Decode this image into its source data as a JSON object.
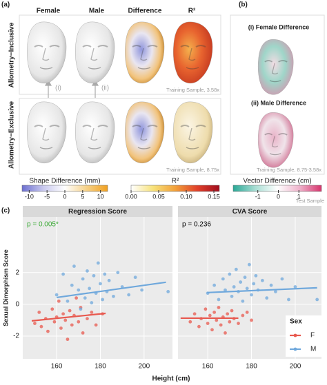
{
  "panel_a": {
    "label": "(a)",
    "columns": [
      "Female",
      "Male",
      "Difference",
      "R²"
    ],
    "rows": [
      "Allometry−Inclusive",
      "Allometry−Exclusive"
    ],
    "arrows": [
      "(i)",
      "(ii)"
    ],
    "notes": [
      "Training Sample, 3.58x",
      "Training Sample, 8.75x"
    ]
  },
  "panel_b": {
    "label": "(b)",
    "titles": [
      "(i) Female Difference",
      "(ii) Male Difference"
    ],
    "note": "Training Sample, 8.75-3.58x"
  },
  "colorbars": [
    {
      "title": "Shape Difference (mm)",
      "lim": [
        -12,
        12
      ],
      "ticks": [
        -10,
        -5,
        0,
        5,
        10
      ],
      "colors": [
        "#6c6fd0",
        "#c9c9ee",
        "#ffffff",
        "#f6d28a",
        "#f0a020"
      ]
    },
    {
      "title": "R²",
      "lim": [
        0,
        0.16
      ],
      "ticks": [
        {
          "value": 0,
          "label": "0.00"
        },
        {
          "value": 0.05,
          "label": "0.05"
        },
        {
          "value": 0.1,
          "label": "0.10"
        },
        0.15
      ],
      "colors": [
        "#ffffff",
        "#f7e27a",
        "#f2a13a",
        "#e0402a",
        "#a00d1e"
      ]
    },
    {
      "title": "Vector Difference (cm)",
      "lim": [
        -2.2,
        2.1
      ],
      "ticks": [
        -1,
        0,
        1
      ],
      "colors": [
        "#2aa896",
        "#a8ddd3",
        "#ffffff",
        "#eeb3cb",
        "#d6336c"
      ]
    }
  ],
  "panel_c": {
    "label": "(c)",
    "note": "Test Sample",
    "xlabel": "Height (cm)",
    "ylabel": "Sexual Dimorphism Score",
    "legend_title": "Sex"
  },
  "chart_data": [
    {
      "type": "scatter",
      "title": "Regression Score",
      "annotation": "p = 0.005*",
      "annotation_color": "#3aaa35",
      "xlim": [
        144.5,
        213
      ],
      "ylim": [
        -3.43,
        5.5
      ],
      "xticks": [
        160,
        180,
        200
      ],
      "yticks": [
        -2,
        0,
        2
      ],
      "grid": true,
      "series": [
        {
          "name": "F",
          "color": "#e8594f",
          "x": [
            150,
            152,
            153,
            155,
            156,
            158,
            159,
            160,
            161,
            162,
            163,
            164,
            165,
            166,
            167,
            168,
            169,
            170,
            171,
            172,
            174,
            176,
            178,
            181
          ],
          "y": [
            -1.2,
            -0.5,
            -1.4,
            -0.9,
            -1.7,
            -0.3,
            -1.1,
            -0.8,
            0.2,
            -1.5,
            -0.6,
            -1.0,
            -2.2,
            -0.4,
            -1.3,
            -0.7,
            0.4,
            -1.1,
            -0.2,
            -1.8,
            -0.9,
            -0.5,
            -1.3,
            -0.6
          ],
          "fit": {
            "x": [
              148.6,
              182.4
            ],
            "y": [
              -1.04,
              -0.57
            ]
          }
        },
        {
          "name": "M",
          "color": "#6fa8dc",
          "x": [
            160,
            163,
            165,
            167,
            168,
            170,
            171,
            172,
            173,
            174,
            175,
            176,
            177,
            178,
            179,
            180,
            181,
            182,
            183,
            184,
            186,
            188,
            190,
            193,
            196,
            199,
            211
          ],
          "y": [
            0.6,
            1.9,
            0.2,
            1.2,
            2.4,
            0.9,
            -0.3,
            1.6,
            0.4,
            2.1,
            1.0,
            0.1,
            1.8,
            0.7,
            2.6,
            1.3,
            0.3,
            1.9,
            0.8,
            1.5,
            0.5,
            2.0,
            1.1,
            0.6,
            1.7,
            0.9,
            0.8
          ],
          "fit": {
            "x": [
              160,
              210
            ],
            "y": [
              0.43,
              1.39
            ]
          }
        }
      ]
    },
    {
      "type": "scatter",
      "title": "CVA Score",
      "annotation": "p = 0.236",
      "annotation_color": "#000000",
      "xlim": [
        146.4,
        212
      ],
      "ylim": [
        -3.43,
        5.5
      ],
      "xticks": [
        160,
        180,
        200
      ],
      "grid": true,
      "series": [
        {
          "name": "F",
          "color": "#e8594f",
          "x": [
            152,
            154,
            156,
            157,
            159,
            160,
            161,
            162,
            163,
            164,
            165,
            166,
            167,
            168,
            169,
            170,
            171,
            172,
            174,
            176,
            178,
            180
          ],
          "y": [
            -1.1,
            -0.6,
            -1.4,
            -0.9,
            -0.3,
            -1.2,
            -0.7,
            -1.6,
            -0.5,
            -1.0,
            -0.2,
            -1.3,
            -0.8,
            -1.8,
            -0.6,
            -1.1,
            -0.4,
            -0.9,
            -1.2,
            -0.7,
            -0.5,
            -1.0
          ],
          "fit": {
            "x": [
              147.6,
              174
            ],
            "y": [
              -0.87,
              -0.87
            ]
          }
        },
        {
          "name": "M",
          "color": "#6fa8dc",
          "x": [
            160,
            163,
            165,
            167,
            168,
            170,
            171,
            172,
            173,
            174,
            175,
            176,
            177,
            178,
            179,
            180,
            181,
            182,
            183,
            185,
            187,
            189,
            191,
            194,
            197,
            200,
            210
          ],
          "y": [
            0.7,
            1.2,
            0.3,
            1.6,
            0.9,
            1.9,
            0.5,
            1.1,
            2.2,
            0.8,
            1.4,
            0.2,
            1.7,
            1.0,
            2.5,
            0.6,
            1.3,
            1.8,
            0.9,
            1.5,
            0.4,
            1.2,
            0.8,
            1.6,
            0.3,
            1.1,
            0.3
          ],
          "fit": {
            "x": [
              159.7,
              210
            ],
            "y": [
              0.74,
              1.04
            ]
          }
        }
      ]
    }
  ]
}
